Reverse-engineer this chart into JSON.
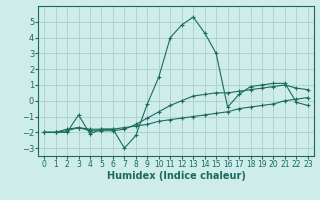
{
  "xlabel": "Humidex (Indice chaleur)",
  "background_color": "#ceecea",
  "grid_color": "#aed4cf",
  "line_color": "#1a6b5e",
  "xlim": [
    -0.5,
    23.5
  ],
  "ylim": [
    -3.5,
    6.0
  ],
  "yticks": [
    -3,
    -2,
    -1,
    0,
    1,
    2,
    3,
    4,
    5
  ],
  "xticks": [
    0,
    1,
    2,
    3,
    4,
    5,
    6,
    7,
    8,
    9,
    10,
    11,
    12,
    13,
    14,
    15,
    16,
    17,
    18,
    19,
    20,
    21,
    22,
    23
  ],
  "line1_x": [
    0,
    1,
    2,
    3,
    4,
    5,
    6,
    7,
    8,
    9,
    10,
    11,
    12,
    13,
    14,
    15,
    16,
    17,
    18,
    19,
    20,
    21,
    22,
    23
  ],
  "line1_y": [
    -2.0,
    -2.0,
    -2.0,
    -0.9,
    -2.1,
    -1.8,
    -1.8,
    -3.0,
    -2.2,
    -0.2,
    1.5,
    4.0,
    4.8,
    5.3,
    4.3,
    3.0,
    -0.4,
    0.4,
    0.9,
    1.0,
    1.1,
    1.1,
    -0.1,
    -0.3
  ],
  "line2_x": [
    0,
    1,
    2,
    3,
    4,
    5,
    6,
    7,
    8,
    9,
    10,
    11,
    12,
    13,
    14,
    15,
    16,
    17,
    18,
    19,
    20,
    21,
    22,
    23
  ],
  "line2_y": [
    -2.0,
    -2.0,
    -1.9,
    -1.7,
    -1.9,
    -1.9,
    -1.9,
    -1.8,
    -1.5,
    -1.1,
    -0.7,
    -0.3,
    -0.0,
    0.3,
    0.4,
    0.5,
    0.5,
    0.6,
    0.7,
    0.8,
    0.9,
    1.0,
    0.8,
    0.7
  ],
  "line3_x": [
    0,
    1,
    2,
    3,
    4,
    5,
    6,
    7,
    8,
    9,
    10,
    11,
    12,
    13,
    14,
    15,
    16,
    17,
    18,
    19,
    20,
    21,
    22,
    23
  ],
  "line3_y": [
    -2.0,
    -2.0,
    -1.8,
    -1.7,
    -1.8,
    -1.8,
    -1.8,
    -1.7,
    -1.6,
    -1.5,
    -1.3,
    -1.2,
    -1.1,
    -1.0,
    -0.9,
    -0.8,
    -0.7,
    -0.5,
    -0.4,
    -0.3,
    -0.2,
    0.0,
    0.1,
    0.2
  ],
  "marker": "+"
}
